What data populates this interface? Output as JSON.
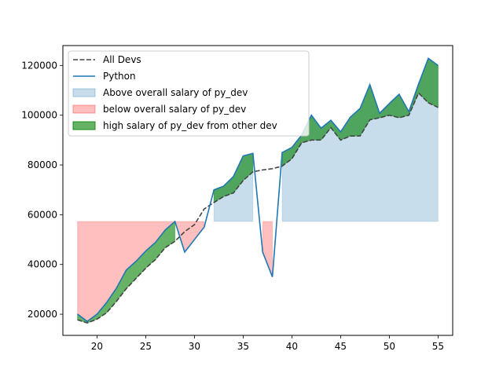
{
  "chart_data": {
    "type": "area",
    "x": [
      18,
      19,
      20,
      21,
      22,
      23,
      24,
      25,
      26,
      27,
      28,
      29,
      30,
      31,
      32,
      33,
      34,
      35,
      36,
      37,
      38,
      39,
      40,
      41,
      42,
      43,
      44,
      45,
      46,
      47,
      48,
      49,
      50,
      51,
      52,
      53,
      54,
      55
    ],
    "series": [
      {
        "name": "All Devs",
        "style": "dashed",
        "color": "#444444",
        "values": [
          17784,
          16500,
          18012,
          20628,
          25206,
          30252,
          34368,
          38496,
          42000,
          46752,
          49320,
          53200,
          56000,
          62316,
          64928,
          67317,
          68748,
          73752,
          77232,
          78000,
          78508,
          79536,
          82488,
          88935,
          90000,
          90056,
          95000,
          90000,
          91633,
          91660,
          98150,
          98964,
          100000,
          98988,
          100000,
          108923,
          105000,
          103117
        ]
      },
      {
        "name": "Python",
        "style": "solid",
        "color": "#1f77b4",
        "values": [
          20046,
          17100,
          20000,
          24744,
          30500,
          37732,
          41247,
          45372,
          48876,
          53850,
          57287,
          45000,
          50000,
          55000,
          70000,
          71496,
          75370,
          83640,
          84666,
          45000,
          35000,
          85000,
          87038,
          91991,
          100000,
          94796,
          97962,
          93302,
          99240,
          102736,
          112285,
          100771,
          104708,
          108423,
          101407,
          112542,
          122870,
          120000
        ]
      }
    ],
    "fills": [
      {
        "name": "Above overall salary of py_dev",
        "color": "#1f77b4",
        "alpha": 0.25,
        "threshold": 57287
      },
      {
        "name": "below overall salary of py_dev",
        "color": "#ff0000",
        "alpha": 0.25,
        "threshold": 57287
      },
      {
        "name": "high salary of py_dev from other dev",
        "color": "#008000",
        "alpha": 0.6
      }
    ],
    "xlim": [
      16.5,
      56.5
    ],
    "ylim": [
      11500,
      128000
    ],
    "xticks": [
      20,
      25,
      30,
      35,
      40,
      45,
      50,
      55
    ],
    "yticks": [
      20000,
      40000,
      60000,
      80000,
      100000,
      120000
    ],
    "legend_position": "upper-left",
    "grid": false
  }
}
